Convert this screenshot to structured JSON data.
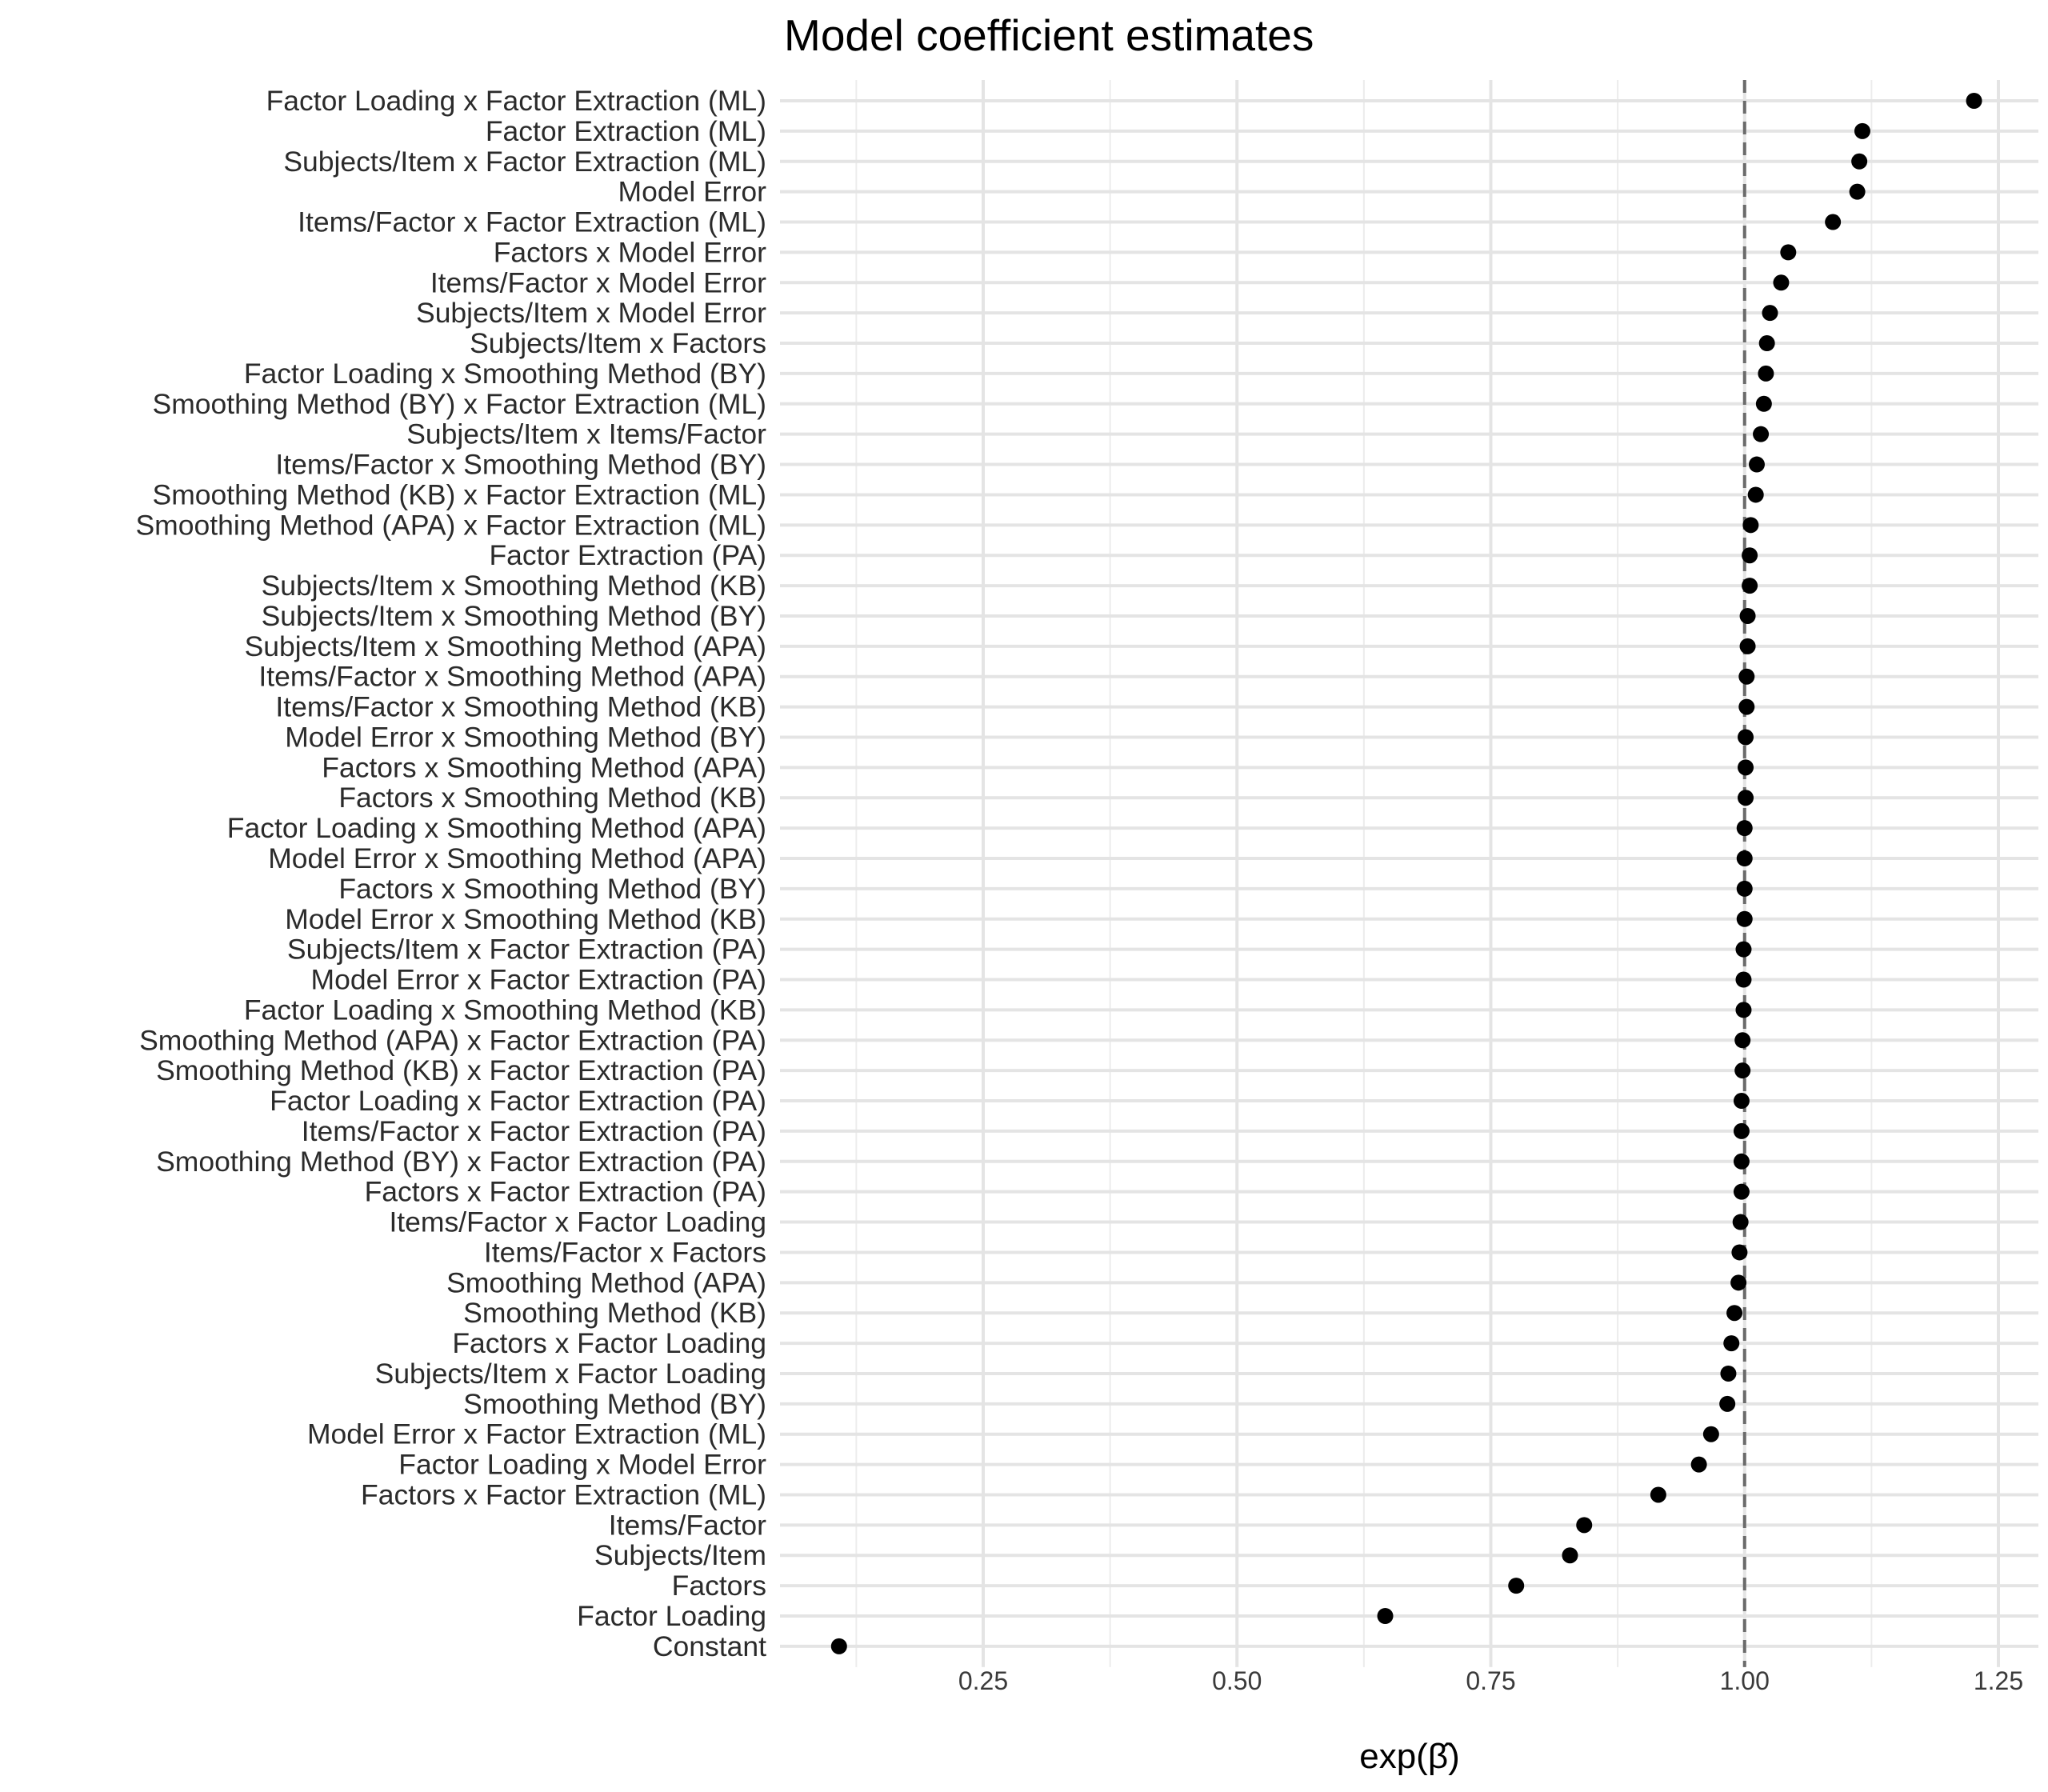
{
  "chart_data": {
    "type": "scatter",
    "title": "Model coefficient estimates",
    "xlabel": "exp(β̂)",
    "ylabel": "",
    "xlim": [
      0.04,
      1.28
    ],
    "x_ticks": [
      "0.25",
      "0.50",
      "0.75",
      "1.00",
      "1.25"
    ],
    "reference_line": {
      "x": 1.0,
      "style": "dashed",
      "color": "#6b6b6b"
    },
    "grid": true,
    "point_color": "#000000",
    "categories": [
      "Factor Loading x Factor Extraction (ML)",
      "Factor Extraction (ML)",
      "Subjects/Item x Factor Extraction (ML)",
      "Model Error",
      "Items/Factor x Factor Extraction (ML)",
      "Factors x Model Error",
      "Items/Factor x Model Error",
      "Subjects/Item x Model Error",
      "Subjects/Item x Factors",
      "Factor Loading x Smoothing Method (BY)",
      "Smoothing Method (BY) x Factor Extraction (ML)",
      "Subjects/Item x Items/Factor",
      "Items/Factor x Smoothing Method (BY)",
      "Smoothing Method (KB) x Factor Extraction (ML)",
      "Smoothing Method (APA) x Factor Extraction (ML)",
      "Factor Extraction (PA)",
      "Subjects/Item x Smoothing Method (KB)",
      "Subjects/Item x Smoothing Method (BY)",
      "Subjects/Item x Smoothing Method (APA)",
      "Items/Factor x Smoothing Method (APA)",
      "Items/Factor x Smoothing Method (KB)",
      "Model Error x Smoothing Method (BY)",
      "Factors x Smoothing Method (APA)",
      "Factors x Smoothing Method (KB)",
      "Factor Loading x Smoothing Method (APA)",
      "Model Error x Smoothing Method (APA)",
      "Factors x Smoothing Method (BY)",
      "Model Error x Smoothing Method (KB)",
      "Subjects/Item x Factor Extraction (PA)",
      "Model Error x Factor Extraction (PA)",
      "Factor Loading x Smoothing Method (KB)",
      "Smoothing Method (APA) x Factor Extraction (PA)",
      "Smoothing Method (KB) x Factor Extraction (PA)",
      "Factor Loading x Factor Extraction (PA)",
      "Items/Factor x Factor Extraction (PA)",
      "Smoothing Method (BY) x Factor Extraction (PA)",
      "Factors x Factor Extraction (PA)",
      "Items/Factor x Factor Loading",
      "Items/Factor x Factors",
      "Smoothing Method (APA)",
      "Smoothing Method (KB)",
      "Factors x Factor Loading",
      "Subjects/Item x Factor Loading",
      "Smoothing Method (BY)",
      "Model Error x Factor Extraction (ML)",
      "Factor Loading x Model Error",
      "Factors x Factor Extraction (ML)",
      "Items/Factor",
      "Subjects/Item",
      "Factors",
      "Factor Loading",
      "Constant"
    ],
    "values": [
      1.226,
      1.116,
      1.113,
      1.111,
      1.087,
      1.043,
      1.036,
      1.025,
      1.022,
      1.021,
      1.019,
      1.016,
      1.012,
      1.011,
      1.006,
      1.005,
      1.005,
      1.003,
      1.003,
      1.002,
      1.002,
      1.001,
      1.001,
      1.001,
      1.0,
      1.0,
      1.0,
      1.0,
      0.999,
      0.999,
      0.999,
      0.998,
      0.998,
      0.997,
      0.997,
      0.997,
      0.997,
      0.996,
      0.995,
      0.994,
      0.99,
      0.987,
      0.984,
      0.983,
      0.967,
      0.955,
      0.915,
      0.842,
      0.828,
      0.775,
      0.646,
      0.108
    ]
  }
}
